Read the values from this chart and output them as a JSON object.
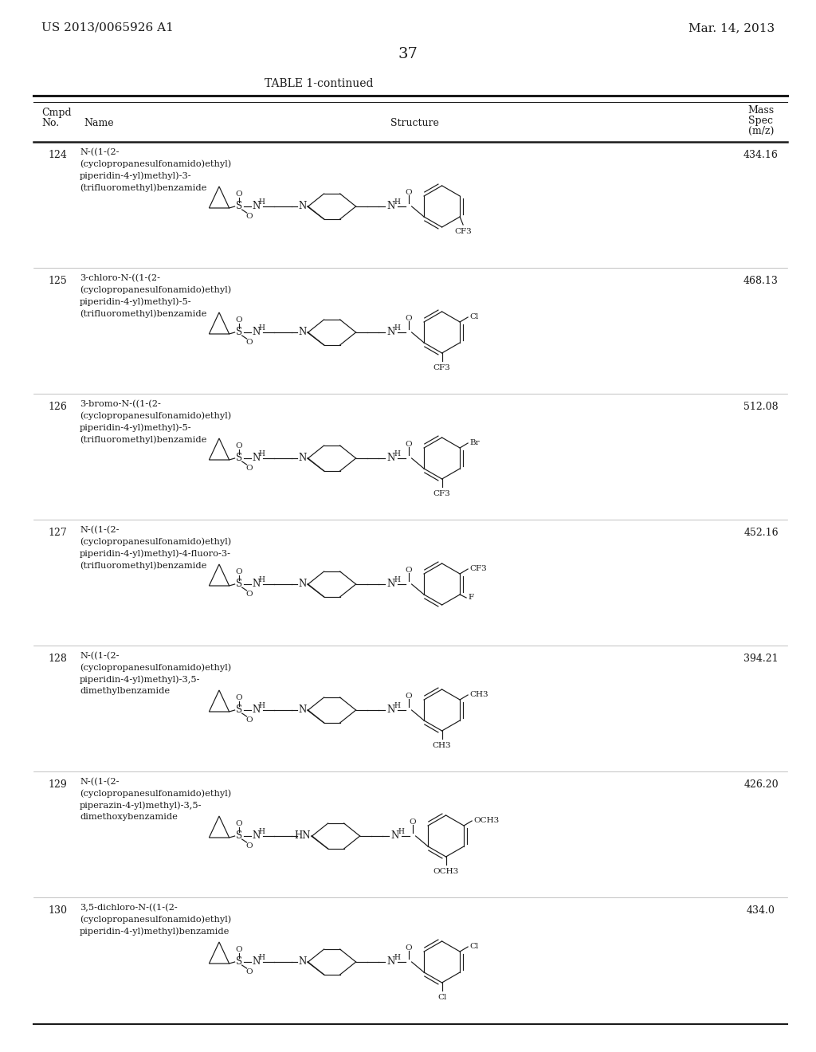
{
  "page_number": "37",
  "patent_number": "US 2013/0065926 A1",
  "patent_date": "Mar. 14, 2013",
  "table_title": "TABLE 1-continued",
  "background_color": "#ffffff",
  "text_color": "#1a1a1a",
  "rows": [
    {
      "no": "124",
      "name": "N-((1-(2-\n(cyclopropanesulfonamido)ethyl)\npiperidin-4-yl)methyl)-3-\n(trifluoromethyl)benzamide",
      "mass": "434.16",
      "sub1": "CF3",
      "sub1_pos": "bottom_right",
      "sub2": null,
      "ring_type": "pip",
      "amine": "N"
    },
    {
      "no": "125",
      "name": "3-chloro-N-((1-(2-\n(cyclopropanesulfonamido)ethyl)\npiperidin-4-yl)methyl)-5-\n(trifluoromethyl)benzamide",
      "mass": "468.13",
      "sub1": "Cl",
      "sub1_pos": "top_right",
      "sub2": "CF3",
      "sub2_pos": "bottom",
      "ring_type": "pip",
      "amine": "N"
    },
    {
      "no": "126",
      "name": "3-bromo-N-((1-(2-\n(cyclopropanesulfonamido)ethyl)\npiperidin-4-yl)methyl)-5-\n(trifluoromethyl)benzamide",
      "mass": "512.08",
      "sub1": "Br",
      "sub1_pos": "top_right",
      "sub2": "CF3",
      "sub2_pos": "bottom",
      "ring_type": "pip",
      "amine": "N"
    },
    {
      "no": "127",
      "name": "N-((1-(2-\n(cyclopropanesulfonamido)ethyl)\npiperidin-4-yl)methyl)-4-fluoro-3-\n(trifluoromethyl)benzamide",
      "mass": "452.16",
      "sub1": "CF3",
      "sub1_pos": "top_right",
      "sub2": "F",
      "sub2_pos": "right",
      "ring_type": "pip",
      "amine": "N"
    },
    {
      "no": "128",
      "name": "N-((1-(2-\n(cyclopropanesulfonamido)ethyl)\npiperidin-4-yl)methyl)-3,5-\ndimethylbenzamide",
      "mass": "394.21",
      "sub1": "CH3",
      "sub1_pos": "top_right",
      "sub2": "CH3",
      "sub2_pos": "bottom",
      "ring_type": "pip",
      "amine": "N"
    },
    {
      "no": "129",
      "name": "N-((1-(2-\n(cyclopropanesulfonamido)ethyl)\npiperazin-4-yl)methyl)-3,5-\ndimethoxybenzamide",
      "mass": "426.20",
      "sub1": "OCH3",
      "sub1_pos": "top_right",
      "sub2": "OCH3",
      "sub2_pos": "bottom",
      "ring_type": "pip_hn",
      "amine": "HN"
    },
    {
      "no": "130",
      "name": "3,5-dichloro-N-((1-(2-\n(cyclopropanesulfonamido)ethyl)\npiperidin-4-yl)methyl)benzamide",
      "mass": "434.0",
      "sub1": "Cl",
      "sub1_pos": "top_right",
      "sub2": "Cl",
      "sub2_pos": "bottom",
      "ring_type": "pip",
      "amine": "N"
    }
  ]
}
